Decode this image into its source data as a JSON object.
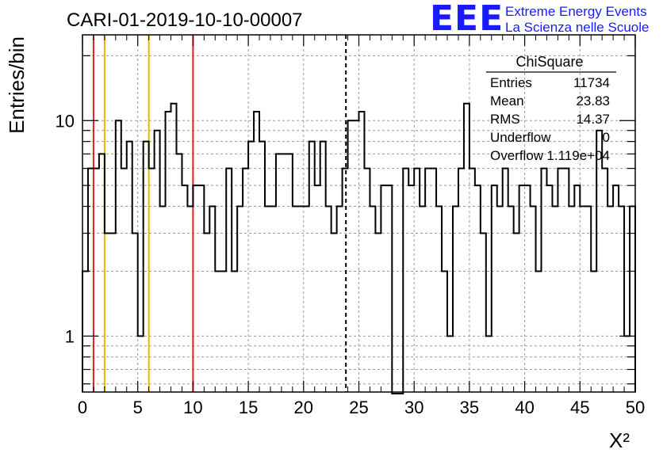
{
  "title": "CARI-01-2019-10-10-00007",
  "logo": {
    "mark": "EEE",
    "line1": "Extreme Energy Events",
    "line2": "La Scienza nelle Scuole",
    "color": "#1a1aff"
  },
  "stats": {
    "header": "ChiSquare",
    "rows": [
      {
        "label": "Entries",
        "value": "11734"
      },
      {
        "label": "Mean",
        "value": "23.83"
      },
      {
        "label": "RMS",
        "value": "14.37"
      },
      {
        "label": "Underflow",
        "value": "0"
      },
      {
        "label": "Overflow",
        "value": "1.119e+04"
      }
    ]
  },
  "chart_data": {
    "type": "histogram",
    "xlabel": "X²",
    "ylabel": "Entries/bin",
    "xlim": [
      0,
      50
    ],
    "ylim": [
      0.55,
      25
    ],
    "yscale": "log",
    "grid": true,
    "bin_width": 0.5,
    "x_ticks": [
      "0",
      "5",
      "10",
      "15",
      "20",
      "25",
      "30",
      "35",
      "40",
      "45",
      "50"
    ],
    "y_ticks": [
      "1",
      "10"
    ],
    "values": [
      2,
      6,
      6,
      7,
      3,
      3,
      10,
      6,
      8,
      3,
      1,
      8,
      6,
      9,
      4,
      11,
      12,
      7,
      5,
      4,
      5,
      5,
      3,
      4,
      2,
      2,
      6,
      2,
      4,
      6,
      8,
      11,
      8,
      4,
      4,
      7,
      7,
      7,
      4,
      4,
      4,
      8,
      5,
      8,
      4,
      3,
      4,
      6,
      10,
      10,
      11,
      6,
      4,
      3,
      5,
      5,
      0,
      0,
      6,
      5,
      6,
      4,
      6,
      6,
      4,
      2,
      1,
      4,
      6,
      12,
      6,
      5,
      3,
      1,
      5,
      4,
      6,
      4,
      3,
      5,
      5,
      4,
      2,
      6,
      5,
      4,
      6,
      6,
      4,
      5,
      4,
      4,
      2,
      9,
      6,
      4,
      5,
      4,
      1,
      4
    ],
    "vlines": [
      {
        "x": 1.0,
        "color": "#e02020",
        "style": "solid"
      },
      {
        "x": 2.0,
        "color": "#f0b400",
        "style": "solid"
      },
      {
        "x": 6.0,
        "color": "#f0b400",
        "style": "solid"
      },
      {
        "x": 10.0,
        "color": "#e02020",
        "style": "solid"
      },
      {
        "x": 23.83,
        "color": "#000000",
        "style": "dashed"
      }
    ]
  }
}
